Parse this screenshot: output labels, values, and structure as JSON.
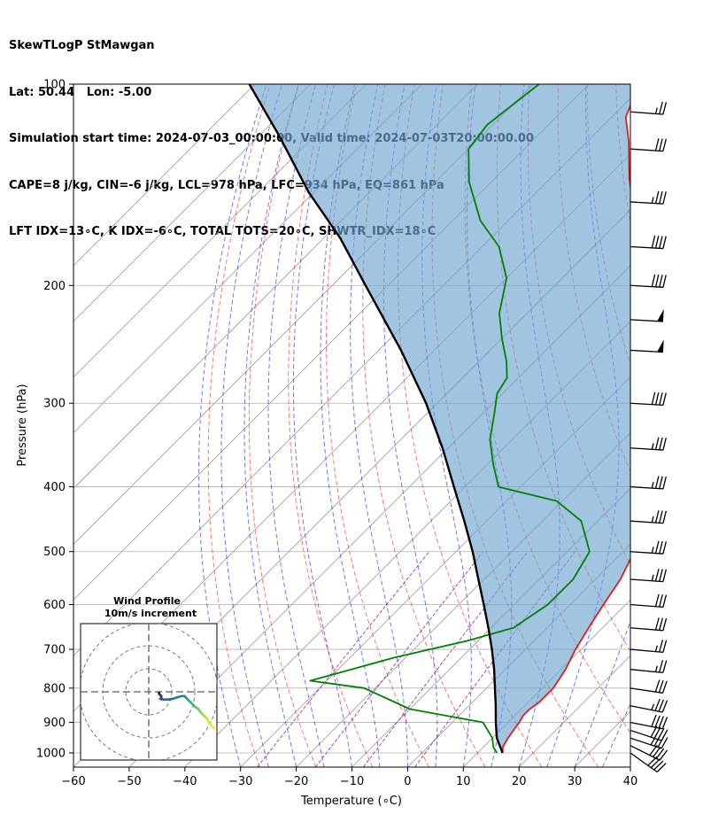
{
  "title_lines": [
    "SkewTLogP StMawgan",
    "Lat: 50.44   Lon: -5.00",
    "Simulation start time: 2024-07-03_00:00:00, Valid time: 2024-07-03T20:00:00.00",
    "CAPE=8 j/kg, CIN=-6 j/kg, LCL=978 hPa, LFC=934 hPa, EQ=861 hPa",
    "LFT IDX=13∘C, K IDX=-6∘C, TOTAL TOTS=20∘C, SHWTR_IDX=18∘C"
  ],
  "chart_data": {
    "type": "line",
    "subtype": "skew-t log-p",
    "xlabel": "Temperature (∘C)",
    "ylabel": "Pressure (hPa)",
    "xlim": [
      -60,
      40
    ],
    "ylim": [
      1050,
      100
    ],
    "y_scale": "log",
    "grid": true,
    "x_ticks": [
      "−60",
      "−50",
      "−40",
      "−30",
      "−20",
      "−10",
      "0",
      "10",
      "20",
      "30",
      "40"
    ],
    "y_ticks": [
      "1000",
      "900",
      "800",
      "700",
      "600",
      "500",
      "400",
      "300",
      "200",
      "100"
    ],
    "series": [
      {
        "role": "temperature",
        "color": "#e31a1c",
        "points": [
          [
            14.5,
            1000
          ],
          [
            13.5,
            980
          ],
          [
            12.8,
            950
          ],
          [
            12.0,
            900
          ],
          [
            11.5,
            880
          ],
          [
            11.5,
            860
          ],
          [
            12.0,
            840
          ],
          [
            12.0,
            800
          ],
          [
            10.8,
            750
          ],
          [
            9.0,
            700
          ],
          [
            7.5,
            650
          ],
          [
            6.0,
            600
          ],
          [
            4.5,
            550
          ],
          [
            2.0,
            500
          ],
          [
            -2.0,
            450
          ],
          [
            -6.0,
            400
          ],
          [
            -12.0,
            350
          ],
          [
            -18.5,
            300
          ],
          [
            -26.0,
            260
          ],
          [
            -32.0,
            235
          ],
          [
            -38.5,
            215
          ],
          [
            -45.5,
            195
          ],
          [
            -52.0,
            175
          ],
          [
            -58.0,
            158
          ],
          [
            -66.0,
            138
          ],
          [
            -72.5,
            122
          ],
          [
            -77.5,
            112
          ],
          [
            -81.0,
            100
          ]
        ]
      },
      {
        "role": "dewpoint",
        "color": "#008000",
        "points": [
          [
            13.5,
            1000
          ],
          [
            11.8,
            980
          ],
          [
            10.0,
            950
          ],
          [
            5.5,
            900
          ],
          [
            -10.0,
            860
          ],
          [
            -22.0,
            800
          ],
          [
            -33.0,
            780
          ],
          [
            -22.0,
            720
          ],
          [
            -12.0,
            680
          ],
          [
            -6.0,
            650
          ],
          [
            -4.0,
            600
          ],
          [
            -4.0,
            550
          ],
          [
            -6.0,
            500
          ],
          [
            -13.0,
            450
          ],
          [
            -21.0,
            420
          ],
          [
            -34.0,
            400
          ],
          [
            -39.0,
            370
          ],
          [
            -44.0,
            340
          ],
          [
            -48.0,
            310
          ],
          [
            -51.0,
            290
          ],
          [
            -52.0,
            275
          ],
          [
            -55.0,
            260
          ],
          [
            -60.0,
            240
          ],
          [
            -65.0,
            220
          ],
          [
            -70.0,
            195
          ],
          [
            -77.0,
            175
          ],
          [
            -85.0,
            160
          ],
          [
            -94.0,
            140
          ],
          [
            -100.0,
            125
          ],
          [
            -101.0,
            115
          ],
          [
            -99.0,
            100
          ]
        ]
      },
      {
        "role": "parcel",
        "color": "#000000",
        "points": [
          [
            14.5,
            1000
          ],
          [
            10.8,
            950
          ],
          [
            7.8,
            900
          ],
          [
            4.8,
            850
          ],
          [
            1.5,
            800
          ],
          [
            -2.0,
            750
          ],
          [
            -6.0,
            700
          ],
          [
            -10.5,
            650
          ],
          [
            -15.5,
            600
          ],
          [
            -21.0,
            550
          ],
          [
            -27.0,
            500
          ],
          [
            -34.0,
            450
          ],
          [
            -42.0,
            400
          ],
          [
            -51.0,
            350
          ],
          [
            -62.0,
            300
          ],
          [
            -76.0,
            250
          ],
          [
            -94.0,
            200
          ],
          [
            -107.0,
            170
          ],
          [
            -121.0,
            145
          ],
          [
            -136.0,
            120
          ],
          [
            -151.0,
            100
          ]
        ]
      }
    ],
    "cape_shading_color": "#6fa4cf",
    "dry_adiabats_color": "#ff0000",
    "moist_adiabats_color": "#0000ff",
    "mixing_ratio_color": "#8000a0",
    "isotherm_color": "#999999",
    "wind_barbs": [
      {
        "p": 1000,
        "u": -14,
        "v": 10,
        "speed_kt": 40
      },
      {
        "p": 975,
        "u": -16,
        "v": 8,
        "speed_kt": 40
      },
      {
        "p": 950,
        "u": -18,
        "v": 6,
        "speed_kt": 40
      },
      {
        "p": 925,
        "u": -18,
        "v": 6,
        "speed_kt": 40
      },
      {
        "p": 900,
        "u": -20,
        "v": 4,
        "speed_kt": 40
      },
      {
        "p": 850,
        "u": -20,
        "v": 4,
        "speed_kt": 35
      },
      {
        "p": 800,
        "u": -20,
        "v": 3,
        "speed_kt": 30
      },
      {
        "p": 750,
        "u": -20,
        "v": 2,
        "speed_kt": 25
      },
      {
        "p": 700,
        "u": -22,
        "v": 2,
        "speed_kt": 25
      },
      {
        "p": 650,
        "u": -24,
        "v": 2,
        "speed_kt": 30
      },
      {
        "p": 600,
        "u": -26,
        "v": 2,
        "speed_kt": 30
      },
      {
        "p": 550,
        "u": -28,
        "v": 2,
        "speed_kt": 35
      },
      {
        "p": 500,
        "u": -30,
        "v": 2,
        "speed_kt": 35
      },
      {
        "p": 450,
        "u": -30,
        "v": 2,
        "speed_kt": 35
      },
      {
        "p": 400,
        "u": -32,
        "v": 2,
        "speed_kt": 35
      },
      {
        "p": 350,
        "u": -32,
        "v": 2,
        "speed_kt": 35
      },
      {
        "p": 300,
        "u": -34,
        "v": 2,
        "speed_kt": 40
      },
      {
        "p": 250,
        "u": -36,
        "v": 2,
        "speed_kt": 50
      },
      {
        "p": 225,
        "u": -36,
        "v": 2,
        "speed_kt": 50
      },
      {
        "p": 200,
        "u": -36,
        "v": 2,
        "speed_kt": 40
      },
      {
        "p": 175,
        "u": -36,
        "v": 2,
        "speed_kt": 40
      },
      {
        "p": 150,
        "u": -34,
        "v": 2,
        "speed_kt": 35
      },
      {
        "p": 125,
        "u": -30,
        "v": 2,
        "speed_kt": 30
      },
      {
        "p": 110,
        "u": -26,
        "v": 2,
        "speed_kt": 25
      }
    ],
    "hodograph": {
      "title_line1": "Wind Profile",
      "title_line2": "10m/s increment",
      "ring_increment_ms": 10,
      "rings": 3,
      "points": [
        [
          -4,
          3.5
        ],
        [
          -4,
          3
        ],
        [
          -3.5,
          2.5
        ],
        [
          -3,
          2
        ],
        [
          -3,
          1
        ],
        [
          -3.5,
          0.8
        ],
        [
          -2,
          0.5
        ],
        [
          0,
          0.5
        ],
        [
          2,
          0.8
        ],
        [
          4,
          1.5
        ],
        [
          6,
          2
        ],
        [
          7,
          2
        ],
        [
          8,
          1
        ],
        [
          9,
          0
        ],
        [
          10,
          -1
        ],
        [
          11,
          -2
        ],
        [
          12,
          -3
        ],
        [
          13,
          -3.5
        ],
        [
          14,
          -5
        ],
        [
          15,
          -6
        ],
        [
          16,
          -7
        ],
        [
          17,
          -8
        ],
        [
          18,
          -10
        ],
        [
          20,
          -12
        ]
      ]
    }
  }
}
